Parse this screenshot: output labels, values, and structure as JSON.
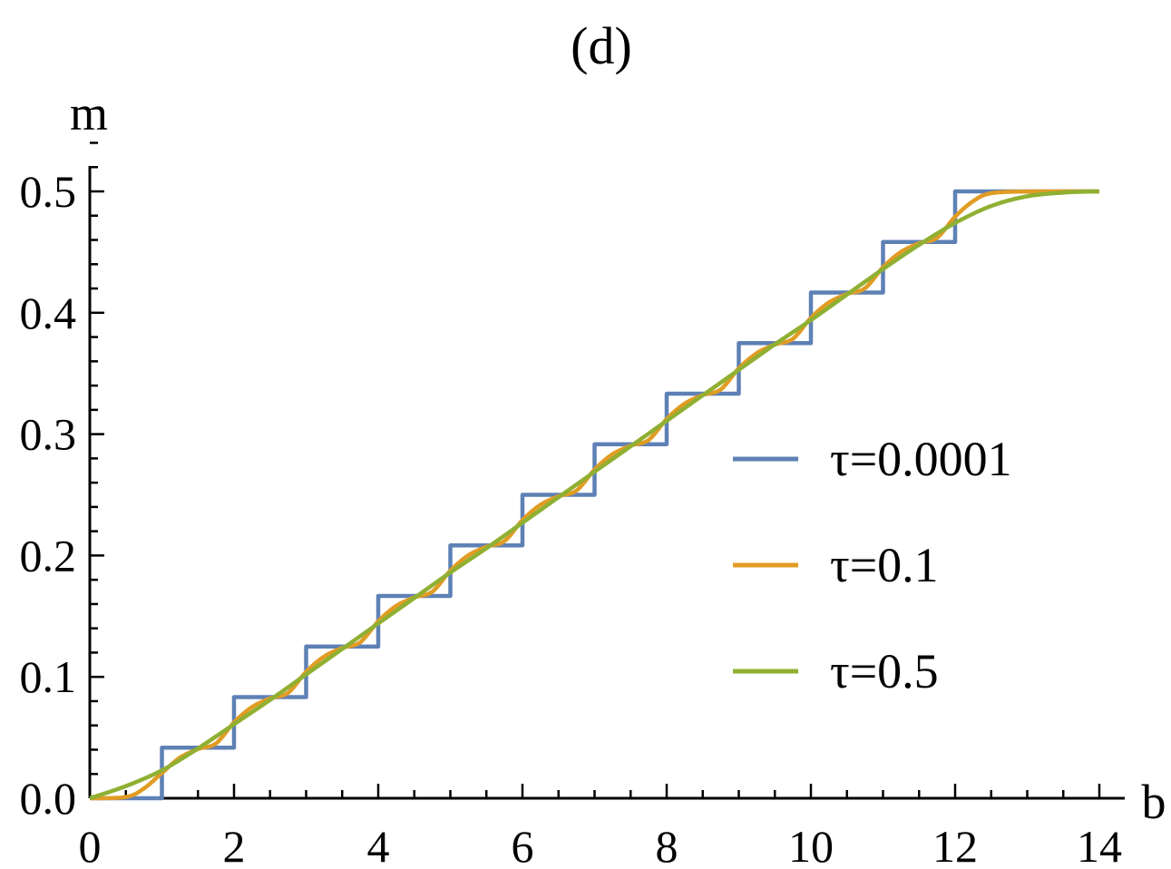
{
  "chart_data": {
    "type": "line",
    "title": "(d)",
    "xlabel": "b",
    "ylabel": "m",
    "xlim": [
      0,
      14
    ],
    "ylim": [
      0,
      0.5
    ],
    "x_ticks": [
      "0",
      "2",
      "4",
      "6",
      "8",
      "10",
      "12",
      "14"
    ],
    "y_ticks": [
      "0.0",
      "0.1",
      "0.2",
      "0.3",
      "0.4",
      "0.5"
    ],
    "grid": false,
    "legend_position": "center-right",
    "series": [
      {
        "name": "τ=0.0001",
        "color": "#5E81B5",
        "x": [
          0,
          1,
          1,
          2,
          2,
          3,
          3,
          4,
          4,
          5,
          5,
          6,
          6,
          7,
          7,
          8,
          8,
          9,
          9,
          10,
          10,
          11,
          11,
          12,
          12,
          14
        ],
        "y": [
          0,
          0,
          0.0417,
          0.0417,
          0.0833,
          0.0833,
          0.125,
          0.125,
          0.1667,
          0.1667,
          0.2083,
          0.2083,
          0.25,
          0.25,
          0.2917,
          0.2917,
          0.3333,
          0.3333,
          0.375,
          0.375,
          0.4167,
          0.4167,
          0.4583,
          0.4583,
          0.5,
          0.5
        ]
      },
      {
        "name": "τ=0.1",
        "color": "#E19C24",
        "x": [
          0,
          0.5,
          0.75,
          1,
          1.25,
          1.5,
          1.75,
          2,
          2.25,
          2.5,
          2.75,
          3,
          3.25,
          3.5,
          3.75,
          4,
          4.25,
          4.5,
          4.75,
          5,
          5.25,
          5.5,
          5.75,
          6,
          6.25,
          6.5,
          6.75,
          7,
          7.25,
          7.5,
          7.75,
          8,
          8.25,
          8.5,
          8.75,
          9,
          9.25,
          9.5,
          9.75,
          10,
          10.25,
          10.5,
          10.75,
          11,
          11.25,
          11.5,
          11.75,
          12,
          12.25,
          12.5,
          13,
          14
        ],
        "y": [
          0,
          0.001,
          0.008,
          0.0208,
          0.0335,
          0.0405,
          0.0452,
          0.0625,
          0.0752,
          0.0822,
          0.0868,
          0.1042,
          0.1168,
          0.1238,
          0.1285,
          0.1458,
          0.1585,
          0.1655,
          0.1702,
          0.1875,
          0.2002,
          0.2072,
          0.2118,
          0.2292,
          0.2418,
          0.2488,
          0.2535,
          0.2708,
          0.2835,
          0.2905,
          0.2952,
          0.3125,
          0.3252,
          0.3322,
          0.3368,
          0.3542,
          0.3668,
          0.3738,
          0.3785,
          0.3958,
          0.4085,
          0.4155,
          0.4202,
          0.4375,
          0.4502,
          0.4572,
          0.4618,
          0.4792,
          0.492,
          0.4985,
          0.4999,
          0.5
        ]
      },
      {
        "name": "τ=0.5",
        "color": "#8FB032",
        "x": [
          0,
          0.5,
          1,
          1.5,
          2,
          2.5,
          3,
          3.5,
          4,
          4.5,
          5,
          5.5,
          6,
          6.5,
          7,
          7.5,
          8,
          8.5,
          9,
          9.5,
          10,
          10.5,
          11,
          11.5,
          12,
          12.5,
          13,
          13.5,
          14
        ],
        "y": [
          0,
          0.01,
          0.023,
          0.041,
          0.061,
          0.081,
          0.102,
          0.123,
          0.144,
          0.165,
          0.186,
          0.206,
          0.227,
          0.248,
          0.269,
          0.29,
          0.311,
          0.332,
          0.353,
          0.374,
          0.394,
          0.415,
          0.436,
          0.456,
          0.474,
          0.488,
          0.496,
          0.499,
          0.5
        ]
      }
    ]
  }
}
